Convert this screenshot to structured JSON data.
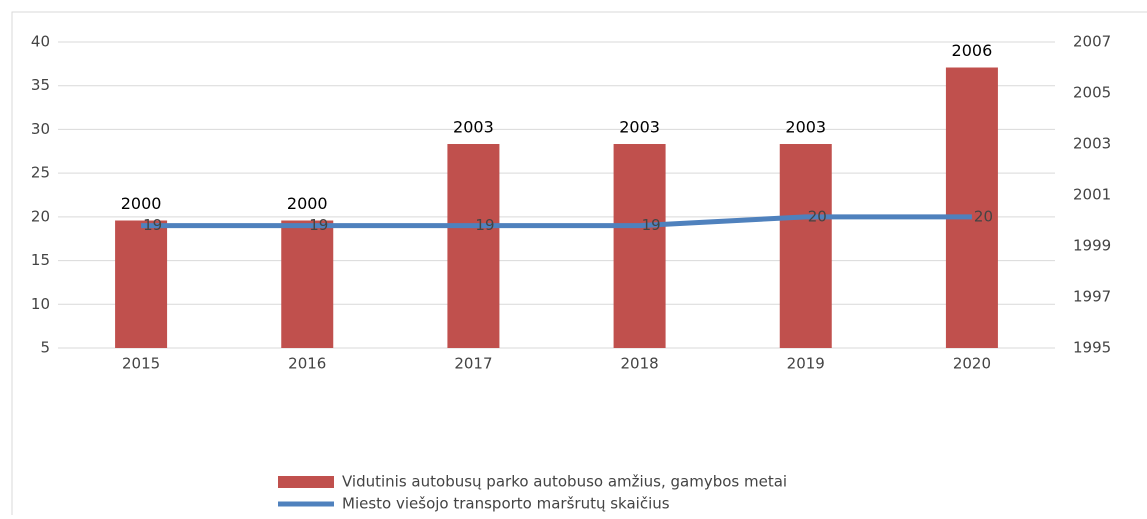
{
  "chart_data": {
    "type": "bar_line",
    "categories": [
      "2015",
      "2016",
      "2017",
      "2018",
      "2019",
      "2020"
    ],
    "series": [
      {
        "name": "Vidutinis autobusų parko autobuso amžius, gamybos metai",
        "type": "bar",
        "axis": "y2",
        "color": "#c0504d",
        "values": [
          2000,
          2000,
          2003,
          2003,
          2003,
          2006
        ]
      },
      {
        "name": "Miesto viešojo transporto maršrutų skaičius",
        "type": "line",
        "axis": "y",
        "color": "#4f81bd",
        "values": [
          19,
          19,
          19,
          19,
          20,
          20
        ]
      }
    ],
    "ylim": [
      5,
      40
    ],
    "yticks": [
      5,
      10,
      15,
      20,
      25,
      30,
      35,
      40
    ],
    "y2lim": [
      1995,
      2007
    ],
    "y2ticks": [
      1995,
      1997,
      1999,
      2001,
      2003,
      2005,
      2007
    ],
    "grid": true,
    "legend": "bottom"
  }
}
